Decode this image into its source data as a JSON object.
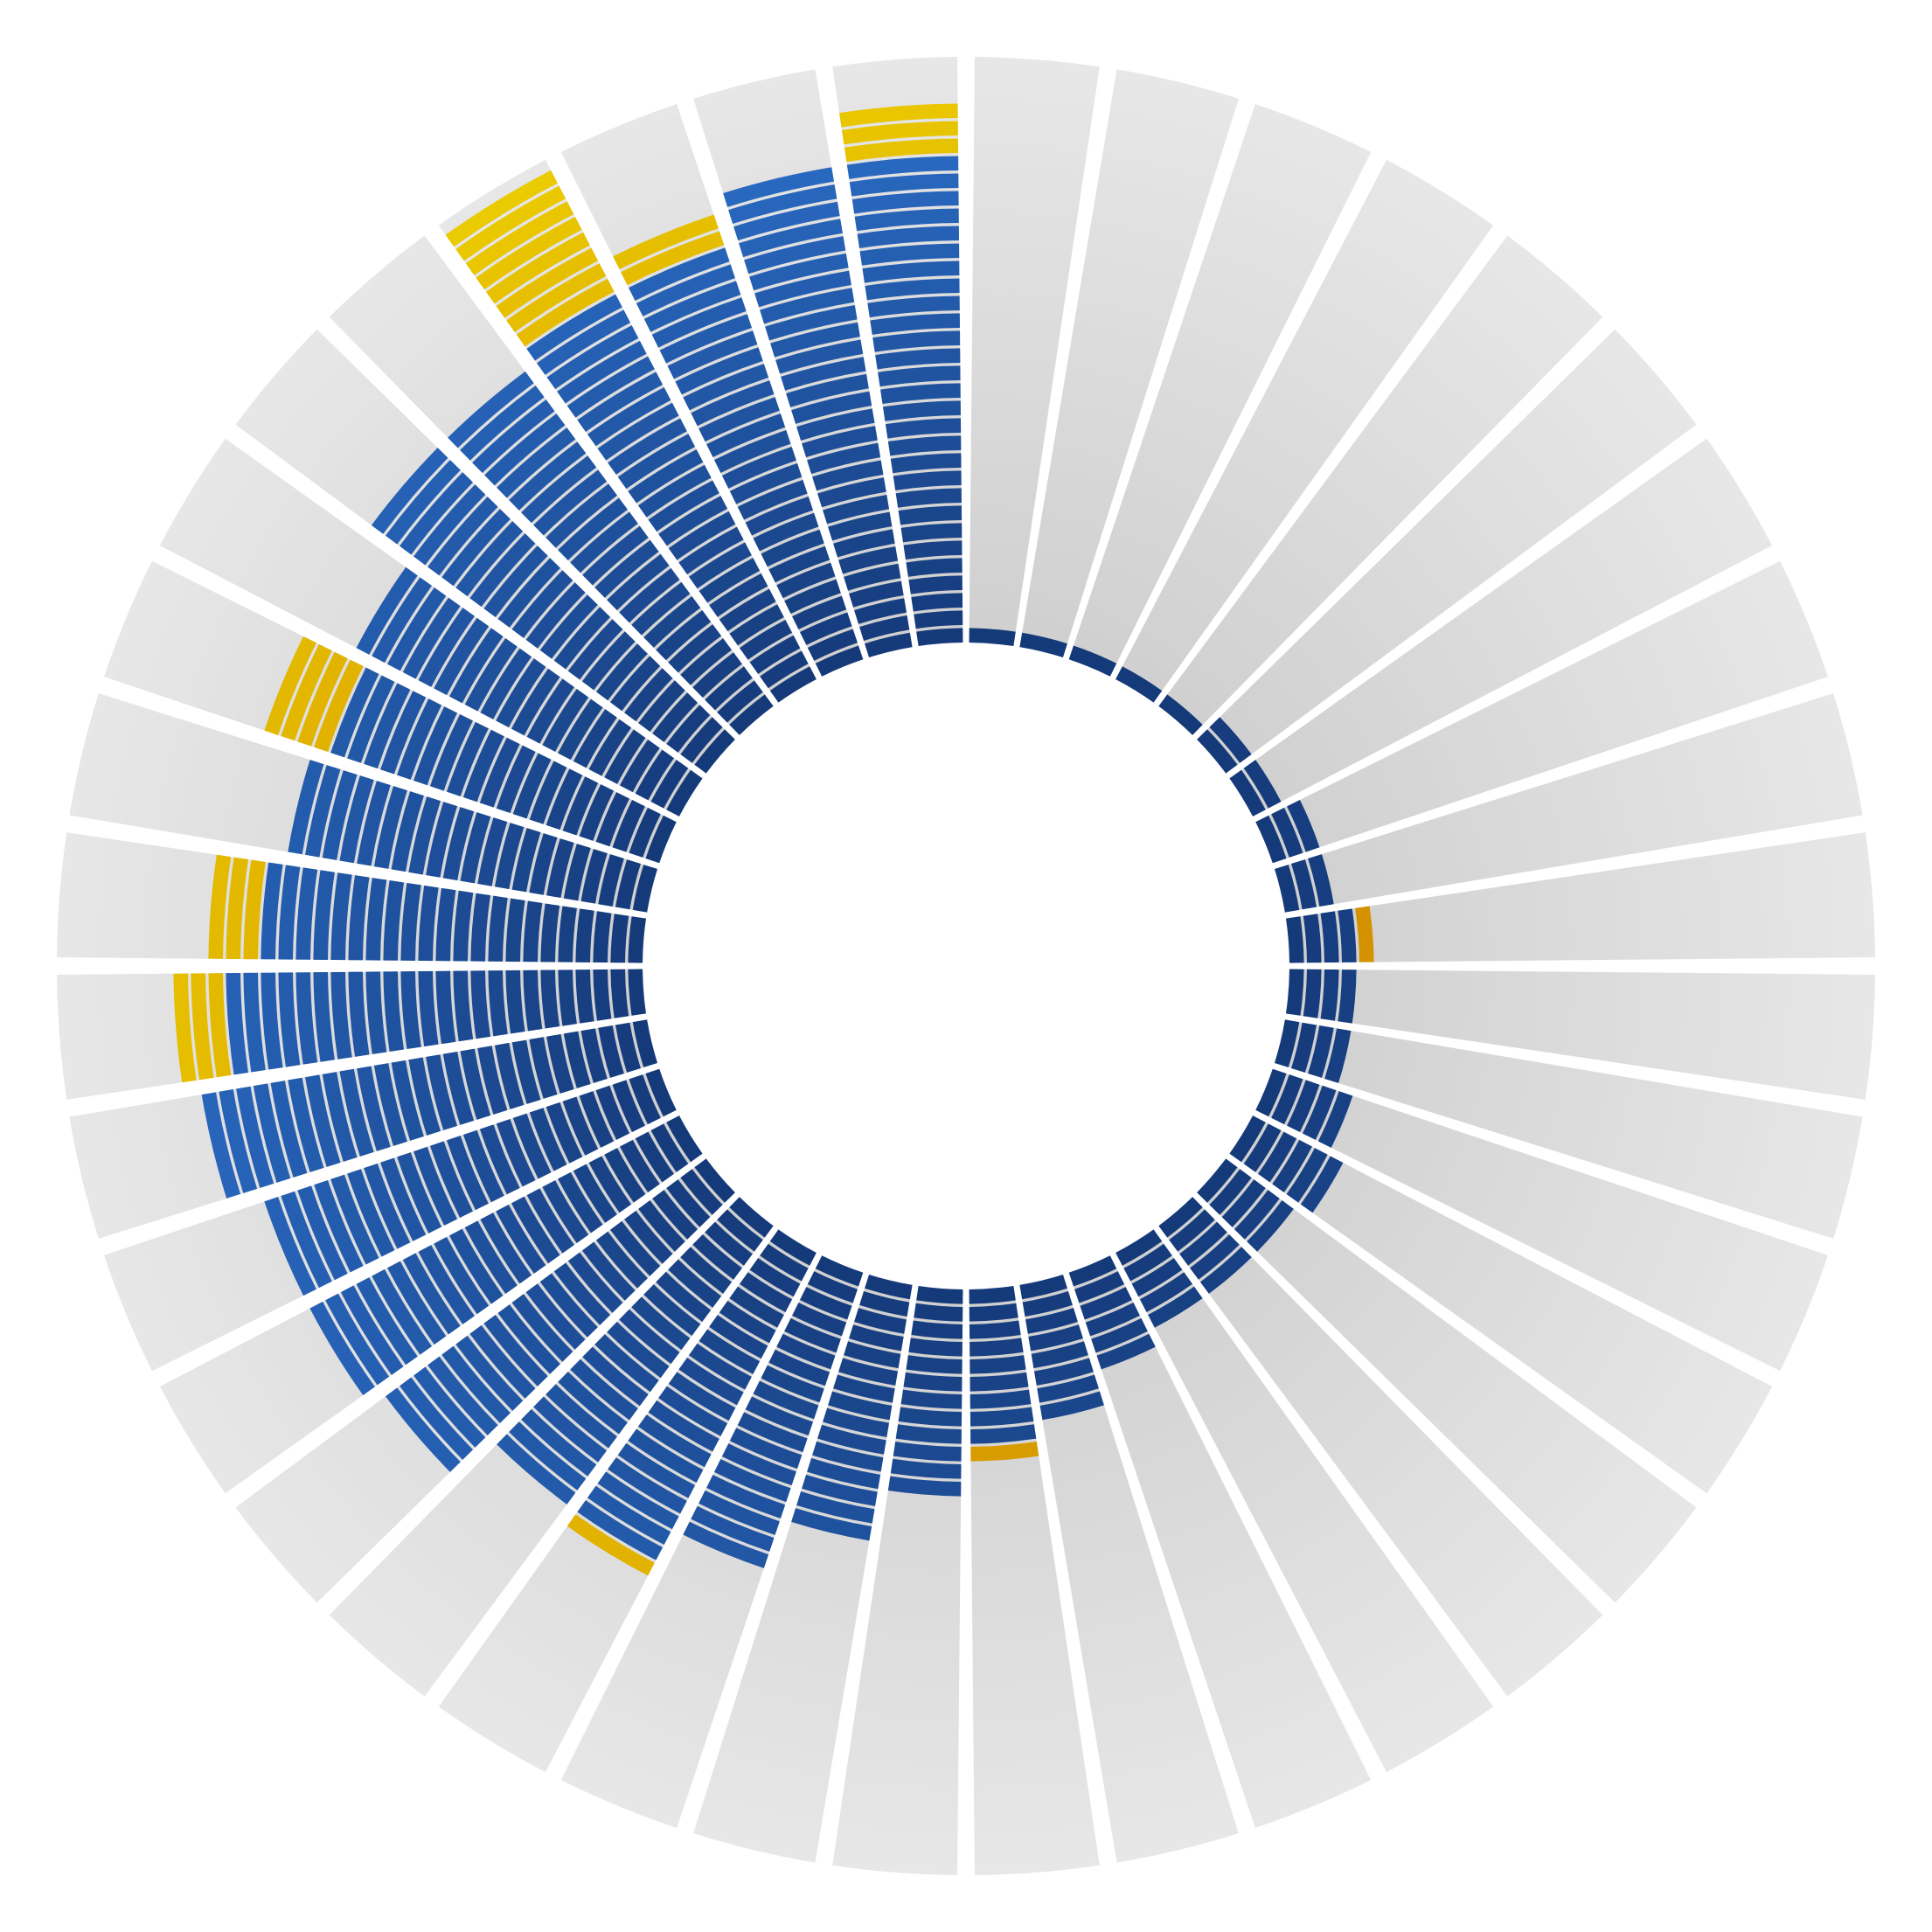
{
  "chart_data": {
    "type": "radial-bar",
    "title": "",
    "start_angle_deg": 0,
    "direction": "clockwise",
    "segment_count": 40,
    "max_units": 30,
    "series": [
      {
        "name": "",
        "color": "#1c4e9c"
      },
      {
        "name": "",
        "color": "#e0b000"
      }
    ],
    "background_color": "#e3e3e3",
    "blue_counts": [
      1,
      1,
      1,
      1,
      1,
      2,
      2,
      3,
      3,
      4,
      4,
      4,
      5,
      6,
      5,
      5,
      5,
      6,
      8,
      9,
      12,
      15,
      18,
      20,
      20,
      23,
      24,
      24,
      26,
      24,
      22,
      21,
      20,
      21,
      24,
      24,
      25,
      25,
      28,
      28
    ],
    "yellow_counts": [
      0,
      0,
      0,
      0,
      0,
      0,
      0,
      0,
      0,
      1,
      0,
      0,
      0,
      0,
      0,
      0,
      0,
      0,
      0,
      1,
      0,
      0,
      0,
      1,
      0,
      0,
      0,
      0,
      0,
      3,
      3,
      0,
      4,
      0,
      0,
      0,
      8,
      2,
      0,
      3
    ]
  },
  "colors": {
    "blue_inner": "#153a7a",
    "blue_outer": "#2a6bc4",
    "yellow_inner": "#d28a00",
    "yellow_outer": "#e8c400",
    "bg_inner": "#cfcfcf",
    "bg_outer": "#e7e7e7",
    "separator": "#ffffff"
  }
}
